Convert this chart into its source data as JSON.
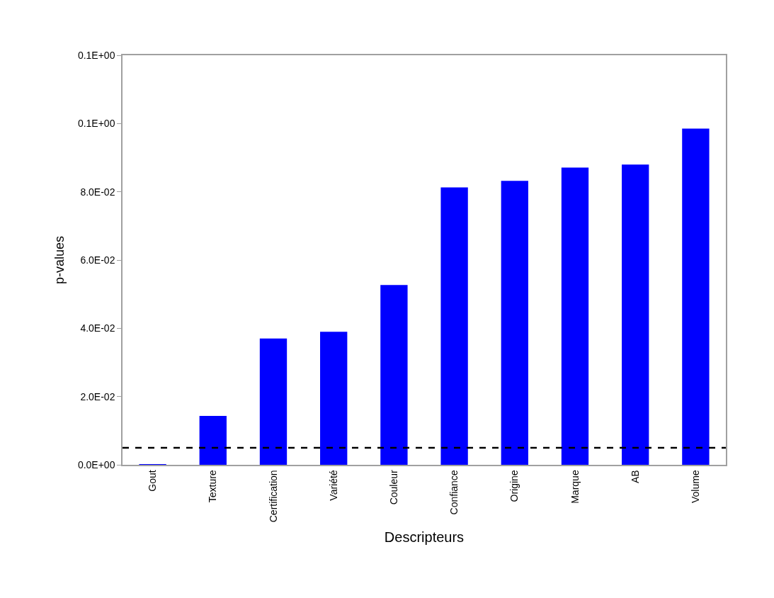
{
  "chart_data": {
    "type": "bar",
    "xlabel": "Descripteurs",
    "ylabel": "p-values",
    "categories": [
      "Gout",
      "Texture",
      "Certification",
      "Variété",
      "Couleur",
      "Confiance",
      "Origine",
      "Marque",
      "AB",
      "Volume"
    ],
    "values": [
      0.0002,
      0.0143,
      0.037,
      0.039,
      0.0527,
      0.0813,
      0.0832,
      0.0871,
      0.088,
      0.0985
    ],
    "color": "#0000ff",
    "ylim": [
      0,
      0.12
    ],
    "yticks": [
      {
        "value": 0,
        "label": "0.0E+00"
      },
      {
        "value": 0.02,
        "label": "2.0E-02"
      },
      {
        "value": 0.04,
        "label": "4.0E-02"
      },
      {
        "value": 0.06,
        "label": "6.0E-02"
      },
      {
        "value": 0.08,
        "label": "8.0E-02"
      },
      {
        "value": 0.1,
        "label": "0.1E+00"
      },
      {
        "value": 0.12,
        "label": "0.1E+00"
      }
    ],
    "ref_lines": [
      {
        "axis": "y",
        "value": 0.005,
        "color": "#000000",
        "line_style": "dashed"
      }
    ]
  }
}
